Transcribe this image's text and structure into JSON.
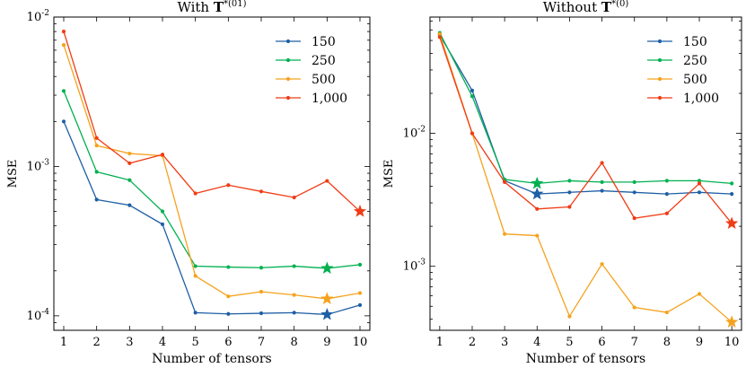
{
  "chart_data": [
    {
      "type": "line",
      "title_prefix": "With ",
      "title_math": "T",
      "title_sup": "*(01)",
      "xlabel": "Number of tensors",
      "ylabel": "MSE",
      "yscale": "log",
      "ylim": [
        8e-05,
        0.01
      ],
      "x": [
        1,
        2,
        3,
        4,
        5,
        6,
        7,
        8,
        9,
        10
      ],
      "xticks": [
        "1",
        "2",
        "3",
        "4",
        "5",
        "6",
        "7",
        "8",
        "9",
        "10"
      ],
      "yticks": [
        {
          "value": 0.01,
          "base": "10",
          "exp": "-2"
        },
        {
          "value": 0.001,
          "base": "10",
          "exp": "-3"
        },
        {
          "value": 0.0001,
          "base": "10",
          "exp": "-4"
        }
      ],
      "legend_position": "top-right",
      "series": [
        {
          "name": "150",
          "color": "#1f5fa5",
          "best_index": 8,
          "values": [
            0.002,
            0.0006,
            0.00055,
            0.00041,
            0.000105,
            0.000103,
            0.000104,
            0.000105,
            0.000102,
            0.000118
          ]
        },
        {
          "name": "250",
          "color": "#00b050",
          "best_index": 8,
          "values": [
            0.0032,
            0.00092,
            0.00081,
            0.0005,
            0.000215,
            0.000212,
            0.00021,
            0.000215,
            0.000208,
            0.00022
          ]
        },
        {
          "name": "500",
          "color": "#f5a21d",
          "best_index": 8,
          "values": [
            0.0065,
            0.00138,
            0.00122,
            0.00118,
            0.000185,
            0.000135,
            0.000145,
            0.000138,
            0.00013,
            0.000142
          ]
        },
        {
          "name": "1,000",
          "color": "#f03c15",
          "best_index": 9,
          "values": [
            0.008,
            0.00155,
            0.00105,
            0.0012,
            0.00066,
            0.00075,
            0.00068,
            0.00062,
            0.0008,
            0.0005
          ]
        }
      ]
    },
    {
      "type": "line",
      "title_prefix": "Without ",
      "title_math": "T",
      "title_sup": "*(0)",
      "xlabel": "Number of tensors",
      "ylabel": "MSE",
      "yscale": "log",
      "ylim": [
        0.00033,
        0.075
      ],
      "x": [
        1,
        2,
        3,
        4,
        5,
        6,
        7,
        8,
        9,
        10
      ],
      "xticks": [
        "1",
        "2",
        "3",
        "4",
        "5",
        "6",
        "7",
        "8",
        "9",
        "10"
      ],
      "yticks": [
        {
          "value": 0.01,
          "base": "10",
          "exp": "-2"
        },
        {
          "value": 0.001,
          "base": "10",
          "exp": "-3"
        }
      ],
      "legend_position": "top-right",
      "series": [
        {
          "name": "150",
          "color": "#1f5fa5",
          "best_index": 3,
          "values": [
            0.055,
            0.021,
            0.0044,
            0.0035,
            0.0036,
            0.0037,
            0.0036,
            0.0035,
            0.0036,
            0.0035
          ]
        },
        {
          "name": "250",
          "color": "#00b050",
          "best_index": 3,
          "values": [
            0.057,
            0.019,
            0.0045,
            0.0042,
            0.0044,
            0.0043,
            0.0043,
            0.0044,
            0.0044,
            0.0042
          ]
        },
        {
          "name": "500",
          "color": "#f5a21d",
          "best_index": 9,
          "values": [
            0.056,
            0.01,
            0.00175,
            0.0017,
            0.00042,
            0.00104,
            0.00049,
            0.00045,
            0.00062,
            0.00038
          ]
        },
        {
          "name": "1,000",
          "color": "#f03c15",
          "best_index": 9,
          "values": [
            0.053,
            0.01,
            0.0043,
            0.0027,
            0.0028,
            0.006,
            0.0023,
            0.0025,
            0.0042,
            0.0021
          ]
        }
      ]
    }
  ]
}
